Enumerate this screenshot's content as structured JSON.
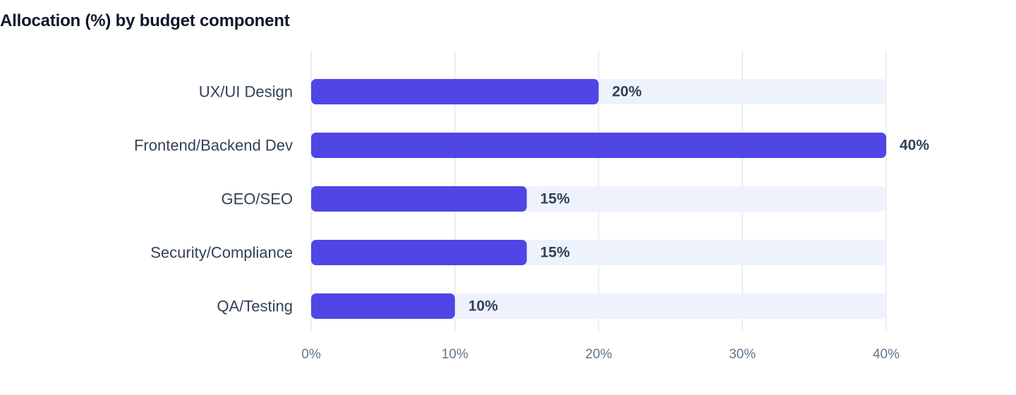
{
  "chart_data": {
    "type": "bar",
    "orientation": "horizontal",
    "title": "Allocation (%) by budget component",
    "xlabel": "",
    "ylabel": "",
    "categories": [
      "UX/UI Design",
      "Frontend/Backend Dev",
      "GEO/SEO",
      "Security/Compliance",
      "QA/Testing"
    ],
    "values": [
      20,
      40,
      15,
      15,
      10
    ],
    "value_labels": [
      "20%",
      "40%",
      "15%",
      "15%",
      "10%"
    ],
    "xlim": [
      0,
      40
    ],
    "x_ticks": [
      0,
      10,
      20,
      30,
      40
    ],
    "x_tick_labels": [
      "0%",
      "10%",
      "20%",
      "30%",
      "40%"
    ],
    "grid": true,
    "legend": "none",
    "colors": {
      "bar": "#4f46e5",
      "track": "#eef2fd",
      "grid": "#e5e7eb",
      "title": "#0f172a",
      "label": "#334155",
      "tick": "#64748b"
    }
  }
}
